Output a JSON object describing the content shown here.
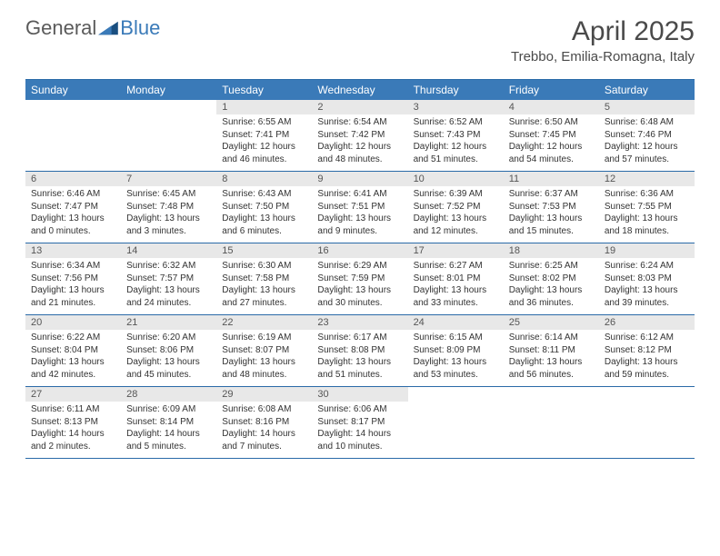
{
  "logo": {
    "general": "General",
    "blue": "Blue"
  },
  "header": {
    "month_title": "April 2025",
    "location": "Trebbo, Emilia-Romagna, Italy"
  },
  "weekdays": [
    "Sunday",
    "Monday",
    "Tuesday",
    "Wednesday",
    "Thursday",
    "Friday",
    "Saturday"
  ],
  "colors": {
    "header_bg": "#3a7ab8",
    "header_text": "#ffffff",
    "border": "#2a6aa8",
    "daynum_bg": "#e8e8e8",
    "body_text": "#333333"
  },
  "weeks": [
    [
      {
        "empty": true
      },
      {
        "empty": true
      },
      {
        "num": "1",
        "sunrise": "Sunrise: 6:55 AM",
        "sunset": "Sunset: 7:41 PM",
        "day1": "Daylight: 12 hours",
        "day2": "and 46 minutes."
      },
      {
        "num": "2",
        "sunrise": "Sunrise: 6:54 AM",
        "sunset": "Sunset: 7:42 PM",
        "day1": "Daylight: 12 hours",
        "day2": "and 48 minutes."
      },
      {
        "num": "3",
        "sunrise": "Sunrise: 6:52 AM",
        "sunset": "Sunset: 7:43 PM",
        "day1": "Daylight: 12 hours",
        "day2": "and 51 minutes."
      },
      {
        "num": "4",
        "sunrise": "Sunrise: 6:50 AM",
        "sunset": "Sunset: 7:45 PM",
        "day1": "Daylight: 12 hours",
        "day2": "and 54 minutes."
      },
      {
        "num": "5",
        "sunrise": "Sunrise: 6:48 AM",
        "sunset": "Sunset: 7:46 PM",
        "day1": "Daylight: 12 hours",
        "day2": "and 57 minutes."
      }
    ],
    [
      {
        "num": "6",
        "sunrise": "Sunrise: 6:46 AM",
        "sunset": "Sunset: 7:47 PM",
        "day1": "Daylight: 13 hours",
        "day2": "and 0 minutes."
      },
      {
        "num": "7",
        "sunrise": "Sunrise: 6:45 AM",
        "sunset": "Sunset: 7:48 PM",
        "day1": "Daylight: 13 hours",
        "day2": "and 3 minutes."
      },
      {
        "num": "8",
        "sunrise": "Sunrise: 6:43 AM",
        "sunset": "Sunset: 7:50 PM",
        "day1": "Daylight: 13 hours",
        "day2": "and 6 minutes."
      },
      {
        "num": "9",
        "sunrise": "Sunrise: 6:41 AM",
        "sunset": "Sunset: 7:51 PM",
        "day1": "Daylight: 13 hours",
        "day2": "and 9 minutes."
      },
      {
        "num": "10",
        "sunrise": "Sunrise: 6:39 AM",
        "sunset": "Sunset: 7:52 PM",
        "day1": "Daylight: 13 hours",
        "day2": "and 12 minutes."
      },
      {
        "num": "11",
        "sunrise": "Sunrise: 6:37 AM",
        "sunset": "Sunset: 7:53 PM",
        "day1": "Daylight: 13 hours",
        "day2": "and 15 minutes."
      },
      {
        "num": "12",
        "sunrise": "Sunrise: 6:36 AM",
        "sunset": "Sunset: 7:55 PM",
        "day1": "Daylight: 13 hours",
        "day2": "and 18 minutes."
      }
    ],
    [
      {
        "num": "13",
        "sunrise": "Sunrise: 6:34 AM",
        "sunset": "Sunset: 7:56 PM",
        "day1": "Daylight: 13 hours",
        "day2": "and 21 minutes."
      },
      {
        "num": "14",
        "sunrise": "Sunrise: 6:32 AM",
        "sunset": "Sunset: 7:57 PM",
        "day1": "Daylight: 13 hours",
        "day2": "and 24 minutes."
      },
      {
        "num": "15",
        "sunrise": "Sunrise: 6:30 AM",
        "sunset": "Sunset: 7:58 PM",
        "day1": "Daylight: 13 hours",
        "day2": "and 27 minutes."
      },
      {
        "num": "16",
        "sunrise": "Sunrise: 6:29 AM",
        "sunset": "Sunset: 7:59 PM",
        "day1": "Daylight: 13 hours",
        "day2": "and 30 minutes."
      },
      {
        "num": "17",
        "sunrise": "Sunrise: 6:27 AM",
        "sunset": "Sunset: 8:01 PM",
        "day1": "Daylight: 13 hours",
        "day2": "and 33 minutes."
      },
      {
        "num": "18",
        "sunrise": "Sunrise: 6:25 AM",
        "sunset": "Sunset: 8:02 PM",
        "day1": "Daylight: 13 hours",
        "day2": "and 36 minutes."
      },
      {
        "num": "19",
        "sunrise": "Sunrise: 6:24 AM",
        "sunset": "Sunset: 8:03 PM",
        "day1": "Daylight: 13 hours",
        "day2": "and 39 minutes."
      }
    ],
    [
      {
        "num": "20",
        "sunrise": "Sunrise: 6:22 AM",
        "sunset": "Sunset: 8:04 PM",
        "day1": "Daylight: 13 hours",
        "day2": "and 42 minutes."
      },
      {
        "num": "21",
        "sunrise": "Sunrise: 6:20 AM",
        "sunset": "Sunset: 8:06 PM",
        "day1": "Daylight: 13 hours",
        "day2": "and 45 minutes."
      },
      {
        "num": "22",
        "sunrise": "Sunrise: 6:19 AM",
        "sunset": "Sunset: 8:07 PM",
        "day1": "Daylight: 13 hours",
        "day2": "and 48 minutes."
      },
      {
        "num": "23",
        "sunrise": "Sunrise: 6:17 AM",
        "sunset": "Sunset: 8:08 PM",
        "day1": "Daylight: 13 hours",
        "day2": "and 51 minutes."
      },
      {
        "num": "24",
        "sunrise": "Sunrise: 6:15 AM",
        "sunset": "Sunset: 8:09 PM",
        "day1": "Daylight: 13 hours",
        "day2": "and 53 minutes."
      },
      {
        "num": "25",
        "sunrise": "Sunrise: 6:14 AM",
        "sunset": "Sunset: 8:11 PM",
        "day1": "Daylight: 13 hours",
        "day2": "and 56 minutes."
      },
      {
        "num": "26",
        "sunrise": "Sunrise: 6:12 AM",
        "sunset": "Sunset: 8:12 PM",
        "day1": "Daylight: 13 hours",
        "day2": "and 59 minutes."
      }
    ],
    [
      {
        "num": "27",
        "sunrise": "Sunrise: 6:11 AM",
        "sunset": "Sunset: 8:13 PM",
        "day1": "Daylight: 14 hours",
        "day2": "and 2 minutes."
      },
      {
        "num": "28",
        "sunrise": "Sunrise: 6:09 AM",
        "sunset": "Sunset: 8:14 PM",
        "day1": "Daylight: 14 hours",
        "day2": "and 5 minutes."
      },
      {
        "num": "29",
        "sunrise": "Sunrise: 6:08 AM",
        "sunset": "Sunset: 8:16 PM",
        "day1": "Daylight: 14 hours",
        "day2": "and 7 minutes."
      },
      {
        "num": "30",
        "sunrise": "Sunrise: 6:06 AM",
        "sunset": "Sunset: 8:17 PM",
        "day1": "Daylight: 14 hours",
        "day2": "and 10 minutes."
      },
      {
        "empty": true
      },
      {
        "empty": true
      },
      {
        "empty": true
      }
    ]
  ]
}
